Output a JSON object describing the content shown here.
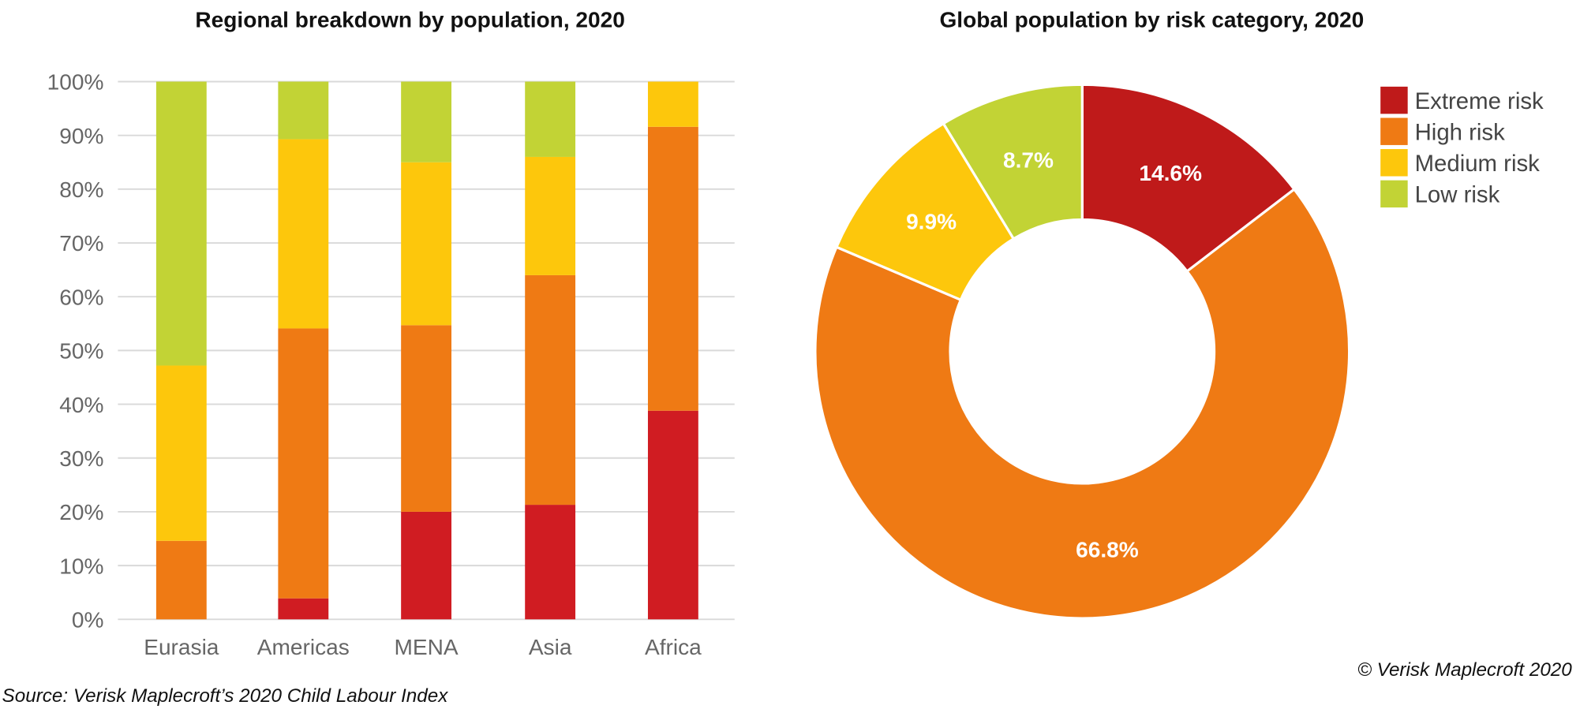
{
  "colors": {
    "extreme": "#d01c22",
    "extreme_donut": "#bf1a1a",
    "high": "#ef7a14",
    "medium": "#fdc70c",
    "low": "#c2d335",
    "grid": "#d9d9d9"
  },
  "source": "Source: Verisk Maplecroft’s 2020 Child Labour Index",
  "copyright": "© Verisk Maplecroft 2020",
  "chart_data": [
    {
      "type": "bar",
      "stacked": true,
      "title": "Regional breakdown by population, 2020",
      "categories": [
        "Eurasia",
        "Americas",
        "MENA",
        "Asia",
        "Africa"
      ],
      "ylim": [
        0,
        100
      ],
      "yticks": [
        "0%",
        "10%",
        "20%",
        "30%",
        "40%",
        "50%",
        "60%",
        "70%",
        "80%",
        "90%",
        "100%"
      ],
      "grid": true,
      "series": [
        {
          "key": "extreme",
          "values": [
            0,
            3.9,
            20.0,
            21.3,
            38.8
          ]
        },
        {
          "key": "high",
          "values": [
            14.6,
            50.2,
            34.7,
            42.7,
            52.8
          ]
        },
        {
          "key": "medium",
          "values": [
            32.6,
            35.2,
            30.3,
            22.0,
            8.4
          ]
        },
        {
          "key": "low",
          "values": [
            52.8,
            10.7,
            15.0,
            14.0,
            0
          ]
        }
      ]
    },
    {
      "type": "pie",
      "donut": true,
      "title": "Global population by risk category, 2020",
      "legend_position": "top-right",
      "slices": [
        {
          "name": "Extreme risk",
          "key": "extreme",
          "value": 14.6,
          "label": "14.6%"
        },
        {
          "name": "High risk",
          "key": "high",
          "value": 66.8,
          "label": "66.8%"
        },
        {
          "name": "Medium risk",
          "key": "medium",
          "value": 9.9,
          "label": "9.9%"
        },
        {
          "name": "Low risk",
          "key": "low",
          "value": 8.7,
          "label": "8.7%"
        }
      ]
    }
  ]
}
